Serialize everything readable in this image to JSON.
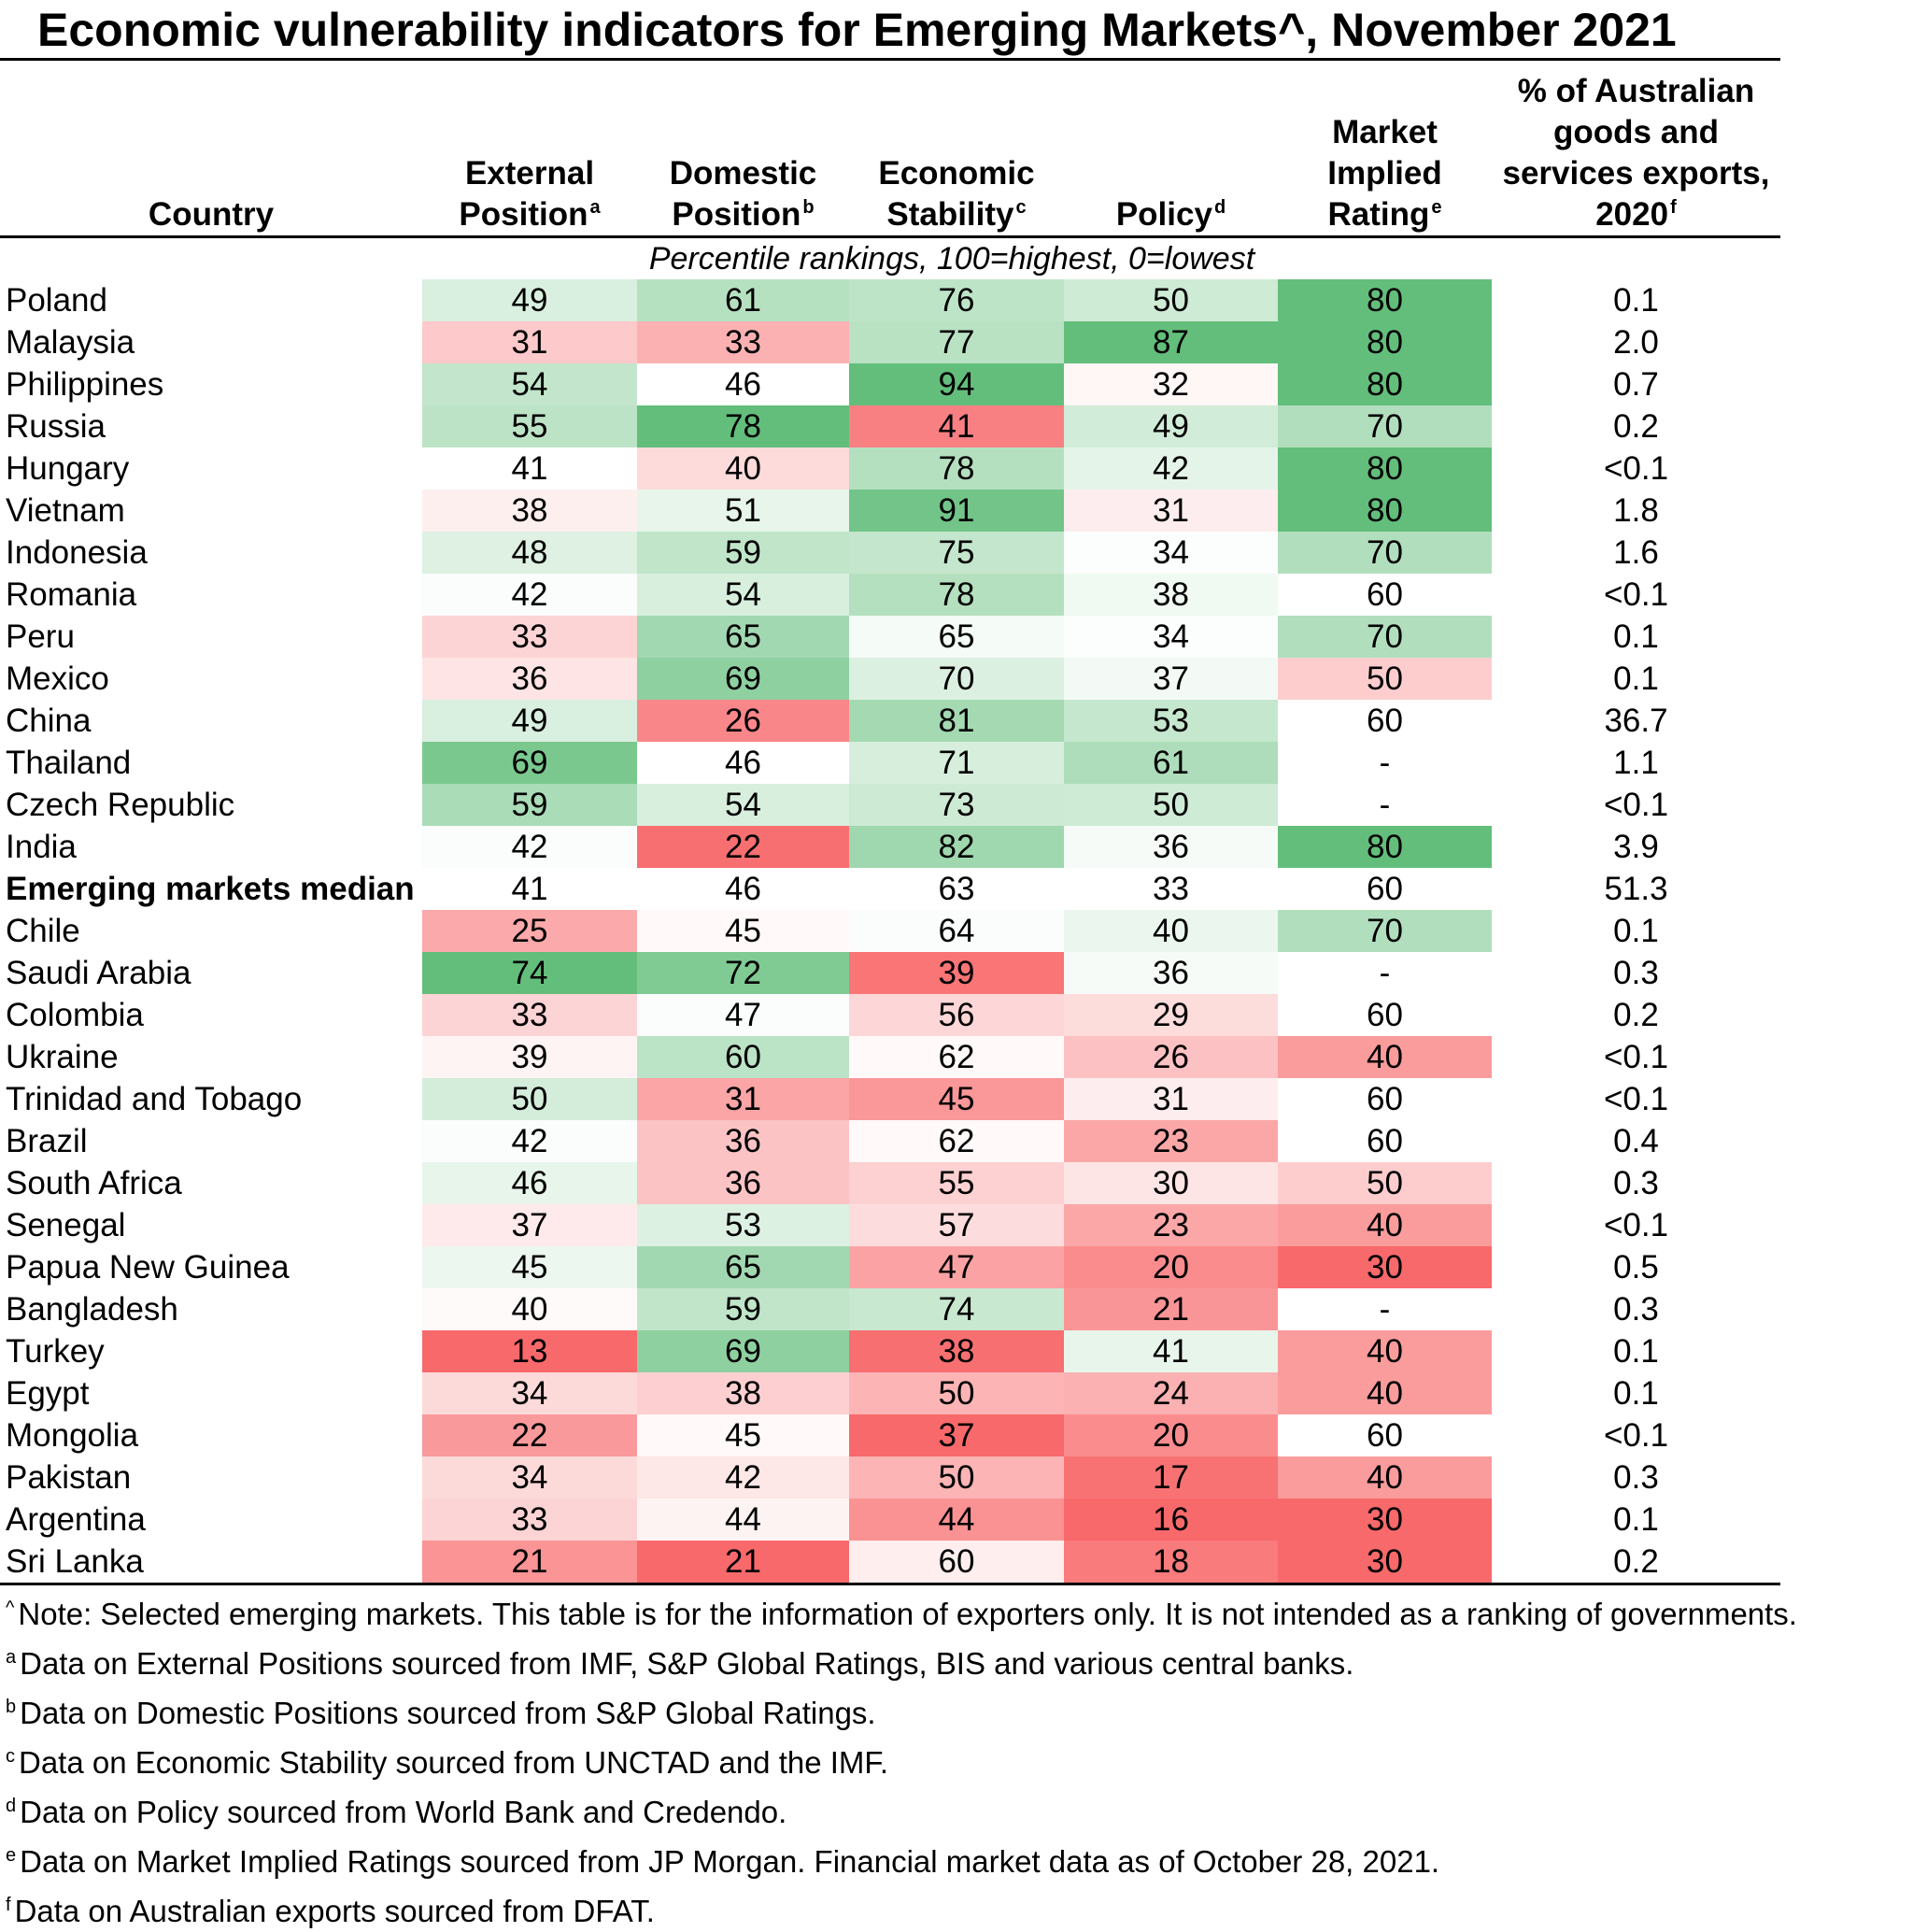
{
  "title": "Economic vulnerability indicators for Emerging Markets^, November 2021",
  "subtitle": "Percentile rankings, 100=highest, 0=lowest",
  "headers": {
    "country": "Country",
    "external": [
      "External",
      "Position"
    ],
    "external_sup": "a",
    "domestic": [
      "Domestic",
      "Position"
    ],
    "domestic_sup": "b",
    "stability": [
      "Economic",
      "Stability"
    ],
    "stability_sup": "c",
    "policy": [
      "Policy"
    ],
    "policy_sup": "d",
    "rating": [
      "Market",
      "Implied",
      "Rating"
    ],
    "rating_sup": "e",
    "exports": [
      "% of Australian",
      "goods and",
      "services exports,",
      "2020"
    ],
    "exports_sup": "f"
  },
  "colors": {
    "high": "#63be7b",
    "mid": "#ffffff",
    "low": "#f8696b"
  },
  "chart_data": {
    "type": "table",
    "columns": [
      "External Position",
      "Domestic Position",
      "Economic Stability",
      "Policy",
      "Market Implied Rating",
      "% of Australian goods and services exports, 2020"
    ],
    "rows": [
      {
        "country": "Poland",
        "values": [
          49,
          61,
          76,
          50,
          80
        ],
        "exports": "0.1"
      },
      {
        "country": "Malaysia",
        "values": [
          31,
          33,
          77,
          87,
          80
        ],
        "exports": "2.0"
      },
      {
        "country": "Philippines",
        "values": [
          54,
          46,
          94,
          32,
          80
        ],
        "exports": "0.7"
      },
      {
        "country": "Russia",
        "values": [
          55,
          78,
          41,
          49,
          70
        ],
        "exports": "0.2"
      },
      {
        "country": "Hungary",
        "values": [
          41,
          40,
          78,
          42,
          80
        ],
        "exports": "<0.1"
      },
      {
        "country": "Vietnam",
        "values": [
          38,
          51,
          91,
          31,
          80
        ],
        "exports": "1.8"
      },
      {
        "country": "Indonesia",
        "values": [
          48,
          59,
          75,
          34,
          70
        ],
        "exports": "1.6"
      },
      {
        "country": "Romania",
        "values": [
          42,
          54,
          78,
          38,
          60
        ],
        "exports": "<0.1"
      },
      {
        "country": "Peru",
        "values": [
          33,
          65,
          65,
          34,
          70
        ],
        "exports": "0.1"
      },
      {
        "country": "Mexico",
        "values": [
          36,
          69,
          70,
          37,
          50
        ],
        "exports": "0.1"
      },
      {
        "country": "China",
        "values": [
          49,
          26,
          81,
          53,
          60
        ],
        "exports": "36.7"
      },
      {
        "country": "Thailand",
        "values": [
          69,
          46,
          71,
          61,
          "-"
        ],
        "exports": "1.1"
      },
      {
        "country": "Czech Republic",
        "values": [
          59,
          54,
          73,
          50,
          "-"
        ],
        "exports": "<0.1"
      },
      {
        "country": "India",
        "values": [
          42,
          22,
          82,
          36,
          80
        ],
        "exports": "3.9"
      },
      {
        "country": "Emerging markets median",
        "values": [
          41,
          46,
          63,
          33,
          60
        ],
        "exports": "51.3",
        "bold": true
      },
      {
        "country": "Chile",
        "values": [
          25,
          45,
          64,
          40,
          70
        ],
        "exports": "0.1"
      },
      {
        "country": "Saudi Arabia",
        "values": [
          74,
          72,
          39,
          36,
          "-"
        ],
        "exports": "0.3"
      },
      {
        "country": "Colombia",
        "values": [
          33,
          47,
          56,
          29,
          60
        ],
        "exports": "0.2"
      },
      {
        "country": "Ukraine",
        "values": [
          39,
          60,
          62,
          26,
          40
        ],
        "exports": "<0.1"
      },
      {
        "country": "Trinidad and Tobago",
        "values": [
          50,
          31,
          45,
          31,
          60
        ],
        "exports": "<0.1"
      },
      {
        "country": "Brazil",
        "values": [
          42,
          36,
          62,
          23,
          60
        ],
        "exports": "0.4"
      },
      {
        "country": "South Africa",
        "values": [
          46,
          36,
          55,
          30,
          50
        ],
        "exports": "0.3"
      },
      {
        "country": "Senegal",
        "values": [
          37,
          53,
          57,
          23,
          40
        ],
        "exports": "<0.1"
      },
      {
        "country": "Papua New Guinea",
        "values": [
          45,
          65,
          47,
          20,
          30
        ],
        "exports": "0.5"
      },
      {
        "country": "Bangladesh",
        "values": [
          40,
          59,
          74,
          21,
          "-"
        ],
        "exports": "0.3"
      },
      {
        "country": "Turkey",
        "values": [
          13,
          69,
          38,
          41,
          40
        ],
        "exports": "0.1"
      },
      {
        "country": "Egypt",
        "values": [
          34,
          38,
          50,
          24,
          40
        ],
        "exports": "0.1"
      },
      {
        "country": "Mongolia",
        "values": [
          22,
          45,
          37,
          20,
          60
        ],
        "exports": "<0.1"
      },
      {
        "country": "Pakistan",
        "values": [
          34,
          42,
          50,
          17,
          40
        ],
        "exports": "0.3"
      },
      {
        "country": "Argentina",
        "values": [
          33,
          44,
          44,
          16,
          30
        ],
        "exports": "0.1"
      },
      {
        "country": "Sri Lanka",
        "values": [
          21,
          21,
          60,
          18,
          30
        ],
        "exports": "0.2"
      }
    ]
  },
  "notes": [
    {
      "sup": "^",
      "text": "Note: Selected emerging markets. This table is for the information of exporters only. It is not intended as a ranking of governments."
    },
    {
      "sup": "a",
      "text": "Data on External Positions sourced from IMF, S&P Global Ratings, BIS and various central banks."
    },
    {
      "sup": "b",
      "text": "Data on Domestic Positions sourced from S&P Global Ratings."
    },
    {
      "sup": "c",
      "text": "Data on Economic Stability sourced from UNCTAD and the IMF."
    },
    {
      "sup": "d",
      "text": "Data on Policy sourced from World Bank and Credendo."
    },
    {
      "sup": "e",
      "text": "Data on Market Implied Ratings sourced from JP Morgan. Financial market data as of October 28, 2021."
    },
    {
      "sup": "f",
      "text": "Data on Australian exports sourced from DFAT."
    }
  ]
}
